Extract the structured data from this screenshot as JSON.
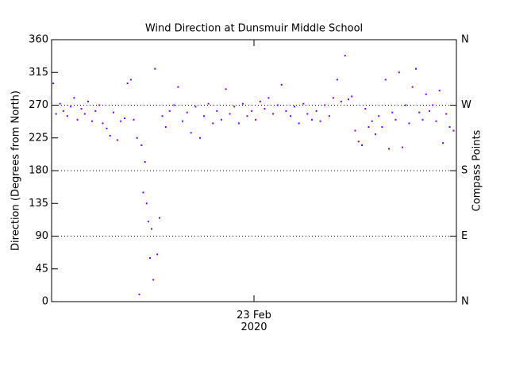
{
  "chart_data": {
    "type": "scatter",
    "title": "Wind Direction at Dunsmuir Middle School",
    "y_label": "Direction (Degrees from North)",
    "y2_label": "Compass Points",
    "xlim": [
      0,
      72
    ],
    "xticks": [
      {
        "value": 36,
        "label": "23 Feb\n2020"
      }
    ],
    "ylim": [
      0,
      360
    ],
    "yticks": [
      0,
      45,
      90,
      135,
      180,
      225,
      270,
      315,
      360
    ],
    "y2lim": [
      0,
      360
    ],
    "y2ticks": [
      {
        "value": 0,
        "label": "N"
      },
      {
        "value": 90,
        "label": "E"
      },
      {
        "value": 180,
        "label": "S"
      },
      {
        "value": 270,
        "label": "W"
      },
      {
        "value": 360,
        "label": "N"
      }
    ],
    "reference_lines": [
      90,
      180,
      270
    ],
    "x": [
      0.3,
      0.8,
      1.5,
      2.1,
      2.8,
      3.4,
      4.0,
      4.6,
      5.3,
      5.9,
      6.5,
      7.2,
      7.8,
      8.5,
      9.1,
      9.8,
      10.4,
      11.0,
      11.7,
      12.3,
      13.0,
      13.5,
      14.1,
      14.6,
      15.2,
      15.6,
      16.0,
      16.3,
      16.6,
      16.9,
      17.2,
      17.5,
      17.8,
      18.1,
      18.4,
      18.8,
      19.2,
      19.7,
      20.3,
      21.0,
      21.8,
      22.5,
      23.3,
      24.1,
      24.8,
      25.6,
      26.4,
      27.1,
      27.9,
      28.7,
      29.4,
      30.2,
      31.0,
      31.7,
      32.5,
      33.3,
      34.0,
      34.8,
      35.6,
      36.3,
      37.1,
      37.9,
      38.6,
      39.4,
      40.2,
      40.9,
      41.7,
      42.5,
      43.2,
      44.0,
      44.8,
      45.5,
      46.3,
      47.1,
      47.8,
      48.6,
      49.4,
      50.1,
      50.8,
      51.5,
      52.2,
      52.8,
      53.4,
      54.0,
      54.6,
      55.2,
      55.8,
      56.4,
      57.0,
      57.6,
      58.2,
      58.8,
      59.4,
      60.0,
      60.6,
      61.2,
      61.8,
      62.4,
      63.0,
      63.6,
      64.2,
      64.8,
      65.4,
      66.0,
      66.6,
      67.2,
      67.8,
      68.4,
      69.0,
      69.6,
      70.2,
      70.8,
      71.5
    ],
    "series": [
      {
        "color": "#8000ff",
        "values": [
          300,
          258,
          272,
          262,
          255,
          268,
          280,
          250,
          265,
          258,
          275,
          248,
          262,
          270,
          245,
          238,
          228,
          260,
          222,
          248,
          252,
          300,
          305,
          250,
          225,
          10,
          215,
          150,
          192,
          135,
          110,
          60,
          100,
          30,
          320,
          65,
          115,
          255,
          240,
          262,
          270,
          295,
          248,
          260,
          232,
          268,
          225,
          255,
          272,
          245,
          262,
          250,
          292,
          258,
          268,
          245,
          272,
          255,
          262,
          250,
          275,
          265,
          280,
          258,
          270,
          298,
          262,
          255,
          268,
          245,
          272,
          258,
          250,
          262,
          248,
          270,
          255,
          280,
          305,
          275,
          338,
          278,
          282,
          235,
          220,
          215,
          265,
          240,
          248,
          230,
          255,
          240,
          305,
          210,
          260,
          250,
          315,
          212,
          270,
          245,
          295,
          320,
          260,
          250,
          285,
          262,
          270,
          248,
          290,
          218,
          258,
          240,
          235
        ]
      }
    ]
  }
}
